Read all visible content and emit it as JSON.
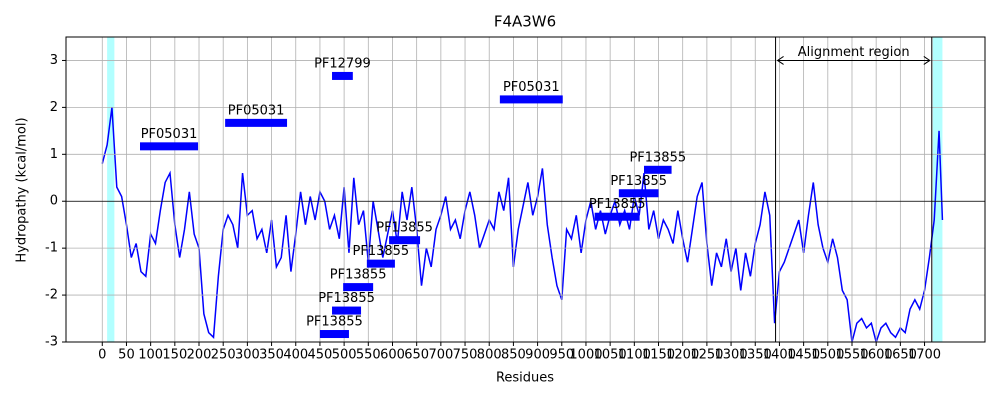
{
  "chart_data": {
    "type": "line",
    "title": "F4A3W6",
    "x_label": "Residues",
    "y_label": "Hydropathy (kcal/mol)",
    "xlim": [
      -75,
      1825
    ],
    "ylim": [
      -3,
      3.5
    ],
    "xticks": [
      0,
      50,
      100,
      150,
      200,
      250,
      300,
      350,
      400,
      450,
      500,
      550,
      600,
      650,
      700,
      750,
      800,
      850,
      900,
      950,
      1000,
      1050,
      1100,
      1150,
      1200,
      1250,
      1300,
      1350,
      1400,
      1450,
      1500,
      1550,
      1600,
      1650,
      1700
    ],
    "yticks": [
      -3,
      -2,
      -1,
      0,
      1,
      2,
      3
    ],
    "grid": true,
    "series": [
      {
        "color": "#0000ff",
        "x": [
          0,
          10,
          20,
          30,
          40,
          50,
          60,
          70,
          80,
          90,
          100,
          110,
          120,
          130,
          140,
          150,
          160,
          170,
          180,
          190,
          200,
          210,
          220,
          230,
          240,
          250,
          260,
          270,
          280,
          290,
          300,
          310,
          320,
          330,
          340,
          350,
          360,
          370,
          380,
          390,
          400,
          410,
          420,
          430,
          440,
          450,
          460,
          470,
          480,
          490,
          500,
          510,
          520,
          530,
          540,
          550,
          560,
          570,
          580,
          590,
          600,
          610,
          620,
          630,
          640,
          650,
          660,
          670,
          680,
          690,
          700,
          710,
          720,
          730,
          740,
          750,
          760,
          770,
          780,
          790,
          800,
          810,
          820,
          830,
          840,
          850,
          860,
          870,
          880,
          890,
          900,
          910,
          920,
          930,
          940,
          950,
          960,
          970,
          980,
          990,
          1000,
          1010,
          1020,
          1030,
          1040,
          1050,
          1060,
          1070,
          1080,
          1090,
          1100,
          1110,
          1120,
          1130,
          1140,
          1150,
          1160,
          1170,
          1180,
          1190,
          1200,
          1210,
          1220,
          1230,
          1240,
          1250,
          1260,
          1270,
          1280,
          1290,
          1300,
          1310,
          1320,
          1330,
          1340,
          1350,
          1360,
          1370,
          1380,
          1390,
          1400,
          1410,
          1420,
          1430,
          1440,
          1450,
          1460,
          1470,
          1480,
          1490,
          1500,
          1510,
          1520,
          1530,
          1540,
          1550,
          1560,
          1570,
          1580,
          1590,
          1600,
          1610,
          1620,
          1630,
          1640,
          1650,
          1660,
          1670,
          1680,
          1690,
          1700,
          1710,
          1720,
          1730,
          1737
        ],
        "values": [
          0.8,
          1.2,
          2.0,
          0.3,
          0.1,
          -0.5,
          -1.2,
          -0.9,
          -1.5,
          -1.6,
          -0.7,
          -0.9,
          -0.2,
          0.4,
          0.6,
          -0.5,
          -1.2,
          -0.6,
          0.2,
          -0.7,
          -1.0,
          -2.4,
          -2.8,
          -2.9,
          -1.6,
          -0.6,
          -0.3,
          -0.5,
          -1.0,
          0.6,
          -0.3,
          -0.2,
          -0.8,
          -0.6,
          -1.1,
          -0.4,
          -1.4,
          -1.2,
          -0.3,
          -1.5,
          -0.7,
          0.2,
          -0.5,
          0.1,
          -0.4,
          0.2,
          0.0,
          -0.6,
          -0.3,
          -0.8,
          0.3,
          -1.1,
          0.5,
          -0.5,
          -0.2,
          -1.3,
          0.0,
          -0.6,
          -1.2,
          -0.7,
          -0.2,
          -0.9,
          0.2,
          -0.4,
          0.3,
          -0.6,
          -1.8,
          -1.0,
          -1.4,
          -0.6,
          -0.3,
          0.1,
          -0.6,
          -0.4,
          -0.8,
          -0.2,
          0.2,
          -0.3,
          -1.0,
          -0.7,
          -0.4,
          -0.6,
          0.2,
          -0.2,
          0.5,
          -1.4,
          -0.6,
          -0.1,
          0.4,
          -0.3,
          0.1,
          0.7,
          -0.5,
          -1.2,
          -1.8,
          -2.1,
          -0.6,
          -0.8,
          -0.3,
          -1.1,
          -0.4,
          0.0,
          -0.6,
          -0.2,
          -0.7,
          -0.3,
          0.0,
          -0.5,
          -0.2,
          -0.6,
          0.1,
          -0.3,
          0.6,
          -0.6,
          -0.2,
          -0.8,
          -0.4,
          -0.6,
          -0.9,
          -0.2,
          -0.8,
          -1.3,
          -0.6,
          0.1,
          0.4,
          -0.9,
          -1.8,
          -1.1,
          -1.4,
          -0.8,
          -1.5,
          -1.0,
          -1.9,
          -1.1,
          -1.6,
          -0.9,
          -0.5,
          0.2,
          -0.3,
          -2.6,
          -1.5,
          -1.3,
          -1.0,
          -0.7,
          -0.4,
          -1.1,
          -0.3,
          0.4,
          -0.5,
          -1.0,
          -1.3,
          -0.8,
          -1.2,
          -1.9,
          -2.1,
          -3.0,
          -2.6,
          -2.5,
          -2.7,
          -2.6,
          -3.0,
          -2.7,
          -2.6,
          -2.8,
          -2.9,
          -2.7,
          -2.8,
          -2.3,
          -2.1,
          -2.3,
          -1.9,
          -1.2,
          -0.4,
          1.5,
          -0.4
        ]
      }
    ],
    "highlights": [
      [
        10,
        25
      ],
      [
        1717,
        1737
      ]
    ],
    "alignment_region": {
      "label": "Alignment region",
      "range": [
        1392,
        1715
      ],
      "y": 3
    },
    "domain_color": "#0000ff",
    "domains": [
      {
        "name": "PF05031",
        "start": 78,
        "end": 198,
        "y": 1.17
      },
      {
        "name": "PF05031",
        "start": 254,
        "end": 382,
        "y": 1.67
      },
      {
        "name": "PF12799",
        "start": 475,
        "end": 518,
        "y": 2.67
      },
      {
        "name": "PF05031",
        "start": 822,
        "end": 952,
        "y": 2.17
      },
      {
        "name": "PF13855",
        "start": 1120,
        "end": 1177,
        "y": 0.67
      },
      {
        "name": "PF13855",
        "start": 1068,
        "end": 1150,
        "y": 0.17
      },
      {
        "name": "PF13855",
        "start": 1018,
        "end": 1111,
        "y": -0.33
      },
      {
        "name": "PF13855",
        "start": 593,
        "end": 657,
        "y": -0.83
      },
      {
        "name": "PF13855",
        "start": 547,
        "end": 605,
        "y": -1.33
      },
      {
        "name": "PF13855",
        "start": 498,
        "end": 560,
        "y": -1.83
      },
      {
        "name": "PF13855",
        "start": 475,
        "end": 535,
        "y": -2.33
      },
      {
        "name": "PF13855",
        "start": 450,
        "end": 510,
        "y": -2.83
      }
    ]
  }
}
